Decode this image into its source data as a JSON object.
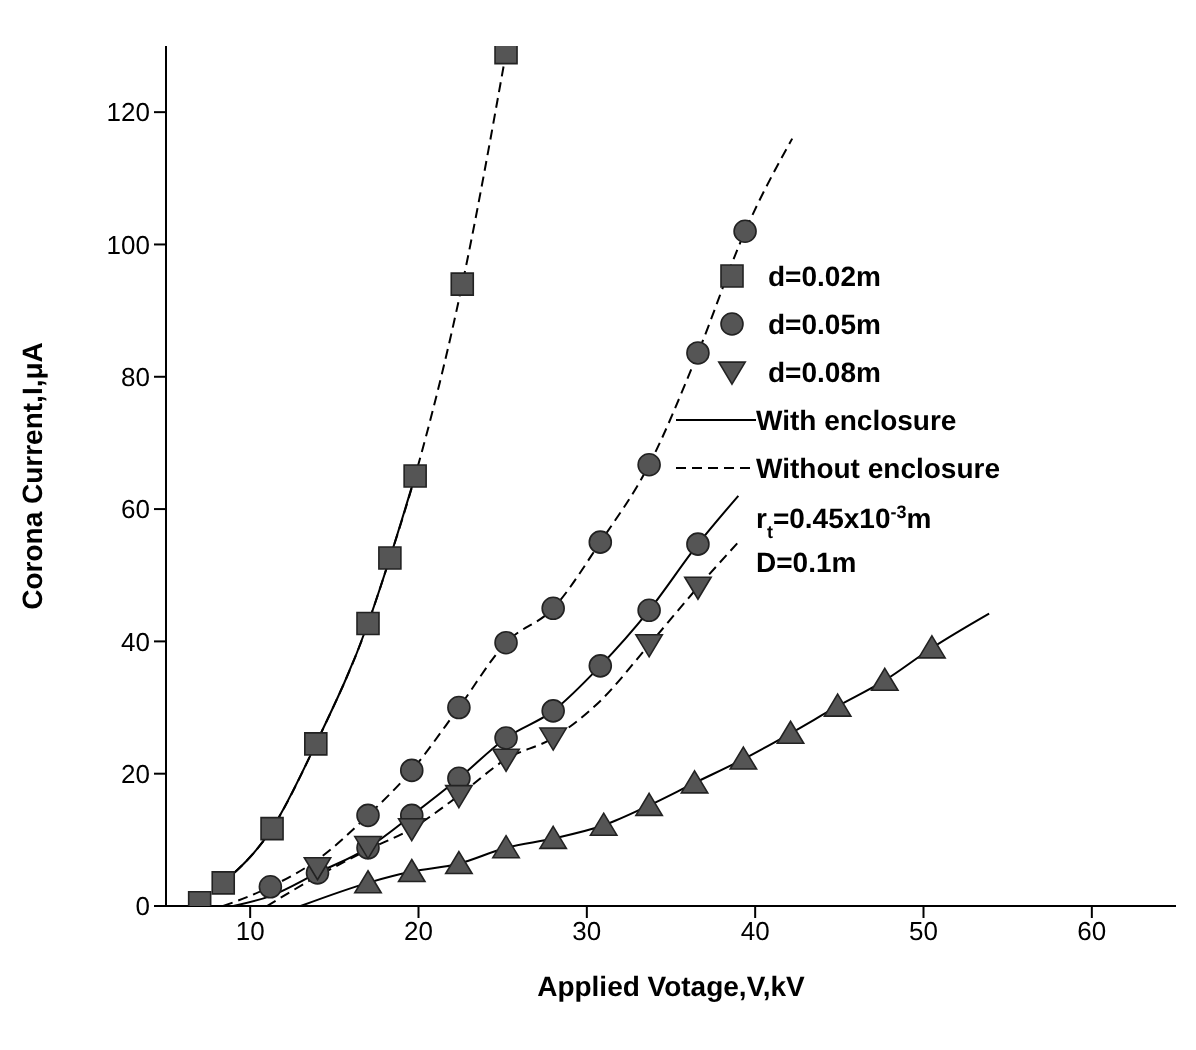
{
  "chart_data": {
    "type": "scatter",
    "xlabel": "Applied Votage,V,kV",
    "ylabel": "Corona Current,I,μA",
    "xlim": [
      5,
      65
    ],
    "xticks": [
      10,
      20,
      30,
      40,
      50,
      60
    ],
    "ylim": [
      0,
      130
    ],
    "yticks": [
      0,
      20,
      40,
      60,
      80,
      100,
      120
    ],
    "grid": false,
    "legend": "right",
    "annotations": [
      "r$_{t}$=0.45x10$^{-3}$m",
      "D=0.1m"
    ],
    "series": [
      {
        "name": "d=0.02m",
        "marker": "square",
        "color": "#555555",
        "x": [
          7,
          8.4,
          11.3,
          13.9,
          17,
          18.3,
          19.8,
          22.6,
          25.2
        ],
        "values": [
          0.5,
          3.5,
          11.7,
          24.5,
          42.7,
          52.6,
          65,
          94,
          129
        ]
      },
      {
        "name": "d=0.05m",
        "marker": "circle",
        "color": "#555555",
        "x": [
          11.2,
          17,
          19.6,
          22.4,
          25.2,
          28,
          30.8,
          33.7,
          36.6,
          39.4,
          14,
          17,
          19.6,
          22.4,
          25.2,
          28,
          30.8,
          33.7,
          36.6
        ],
        "values": [
          2.9,
          13.7,
          20.5,
          30,
          39.8,
          45,
          55,
          66.7,
          83.6,
          102,
          5,
          8.8,
          13.7,
          19.3,
          25.4,
          29.5,
          36.3,
          44.7,
          54.7
        ]
      },
      {
        "name": "d=0.08m",
        "marker": "triangle-down",
        "color": "#555555",
        "x": [
          14,
          17,
          19.6,
          22.4,
          25.2,
          28,
          33.7,
          36.6
        ],
        "values": [
          5.8,
          9,
          11.7,
          16.7,
          22.2,
          25.4,
          39.5,
          48.2
        ]
      },
      {
        "marker": "triangle",
        "color": "#555555",
        "x": [
          17,
          19.6,
          22.4,
          25.2,
          28,
          31,
          33.7,
          36.4,
          39.3,
          42.1,
          44.9,
          47.7,
          50.5
        ],
        "values": [
          3.5,
          5.2,
          6.4,
          8.8,
          10.2,
          12.2,
          15.2,
          18.6,
          22.2,
          26.1,
          30.2,
          34.1,
          39
        ]
      },
      {
        "name": "With enclosure",
        "type": "line",
        "line_style": "solid",
        "marker": "none",
        "color": "#000000",
        "x": [
          8.4,
          11.3,
          13.9,
          17,
          18.3,
          19.8
        ],
        "values": [
          3.5,
          11.7,
          24.5,
          42.7,
          52.6,
          65
        ]
      },
      {
        "name": "Without enclosure",
        "type": "line",
        "line_style": "dashed",
        "marker": "none",
        "color": "#000000",
        "x": [
          8.4,
          11.3,
          13.9,
          17,
          18.3,
          19.8,
          22.6,
          25.2
        ],
        "values": [
          3.5,
          11.7,
          24.5,
          42.7,
          52.6,
          65,
          94,
          129
        ]
      },
      {
        "type": "line",
        "line_style": "dashed",
        "marker": "none",
        "color": "#000000",
        "x": [
          8.4,
          11.2,
          14,
          17,
          19.6,
          22.4,
          25.2,
          28,
          30.8,
          33.7,
          36.6,
          39.4,
          42.2
        ],
        "values": [
          0,
          2.9,
          7,
          13.7,
          20.5,
          30,
          39.8,
          45,
          55,
          66.7,
          83.6,
          102,
          116
        ]
      },
      {
        "type": "line",
        "line_style": "solid",
        "marker": "none",
        "color": "#000000",
        "x": [
          9,
          11.2,
          14,
          17,
          19.6,
          22.4,
          25.2,
          28,
          30.8,
          33.7,
          36.6,
          39
        ],
        "values": [
          0,
          1.5,
          5,
          8.8,
          13.7,
          19.3,
          25.4,
          29.5,
          36.3,
          44.7,
          54.7,
          62
        ]
      },
      {
        "type": "line",
        "line_style": "dashed",
        "marker": "none",
        "color": "#000000",
        "x": [
          11,
          14,
          17,
          19.6,
          22.4,
          25.2,
          28,
          30.8,
          33.7,
          36.6,
          39
        ],
        "values": [
          0,
          4.5,
          8.5,
          11.7,
          16.7,
          22.2,
          25.4,
          31,
          39.5,
          48.2,
          55
        ]
      },
      {
        "type": "line",
        "line_style": "solid",
        "marker": "none",
        "color": "#000000",
        "x": [
          13,
          17,
          19.6,
          22.4,
          25.2,
          28,
          31,
          33.7,
          36.4,
          39.3,
          42.1,
          44.9,
          47.7,
          50.5,
          53.9
        ],
        "values": [
          0,
          3.5,
          5.2,
          6.4,
          8.8,
          10.2,
          12.2,
          15.2,
          18.6,
          22.2,
          26.1,
          30.2,
          34.1,
          39,
          44.2
        ]
      }
    ]
  }
}
